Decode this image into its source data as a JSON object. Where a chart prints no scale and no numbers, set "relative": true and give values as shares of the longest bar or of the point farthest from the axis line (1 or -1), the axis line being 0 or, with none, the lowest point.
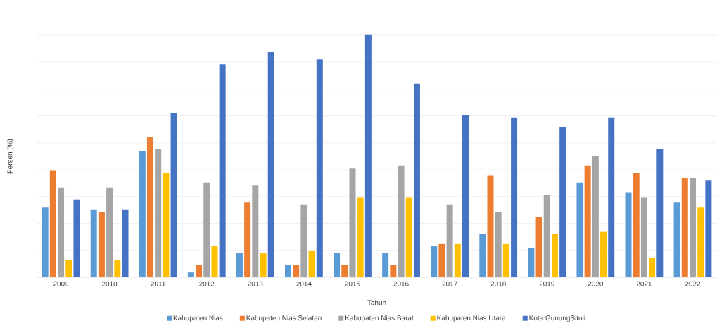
{
  "chart_data": {
    "type": "bar",
    "relative": true,
    "xlabel": "Tahun",
    "ylabel": "Persen (%)",
    "grid": "y",
    "legend": "bottom",
    "categories": [
      "2009",
      "2010",
      "2011",
      "2012",
      "2013",
      "2014",
      "2015",
      "2016",
      "2017",
      "2018",
      "2019",
      "2020",
      "2021",
      "2022"
    ],
    "series": [
      {
        "name": "Kabupaten Nias",
        "color": "#5b9bd5",
        "values": [
          0.29,
          0.28,
          0.52,
          0.02,
          0.1,
          0.05,
          0.1,
          0.1,
          0.13,
          0.18,
          0.12,
          0.39,
          0.35,
          0.31
        ]
      },
      {
        "name": "Kabupaten Nias Selatan",
        "color": "#ed7d31",
        "values": [
          0.44,
          0.27,
          0.58,
          0.05,
          0.31,
          0.05,
          0.05,
          0.05,
          0.14,
          0.42,
          0.25,
          0.46,
          0.43,
          0.41
        ]
      },
      {
        "name": "Kabupaten Nias Barat",
        "color": "#a5a5a5",
        "values": [
          0.37,
          0.37,
          0.53,
          0.39,
          0.38,
          0.3,
          0.45,
          0.46,
          0.3,
          0.27,
          0.34,
          0.5,
          0.33,
          0.41
        ]
      },
      {
        "name": "Kabupaten Nias Utara",
        "color": "#ffc000",
        "values": [
          0.07,
          0.07,
          0.43,
          0.13,
          0.1,
          0.11,
          0.33,
          0.33,
          0.14,
          0.14,
          0.18,
          0.19,
          0.08,
          0.29
        ]
      },
      {
        "name": "Kota GunungSitoli",
        "color": "#4472c4",
        "values": [
          0.32,
          0.28,
          0.68,
          0.88,
          0.93,
          0.9,
          1,
          0.8,
          0.67,
          0.66,
          0.62,
          0.66,
          0.53,
          0.4
        ]
      }
    ]
  }
}
